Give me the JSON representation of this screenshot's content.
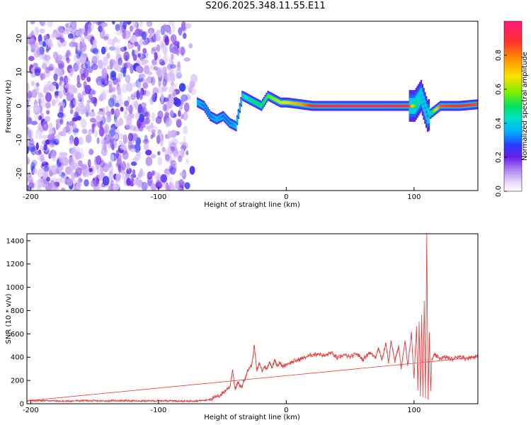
{
  "title": "S206.2025.348.11.55.E11",
  "chart_data": [
    {
      "type": "heatmap",
      "xlabel": "Height of straight line (km)",
      "ylabel": "Frequency (Hz)",
      "xlim": [
        -203,
        150
      ],
      "ylim": [
        -25,
        25
      ],
      "xticks": [
        -200,
        -100,
        0,
        100
      ],
      "yticks": [
        -20,
        -10,
        0,
        10,
        20
      ],
      "colorbar": {
        "label": "Normalized spectral amplitude",
        "range": [
          0,
          1
        ],
        "ticks": [
          0.0,
          0.2,
          0.4,
          0.6,
          0.8
        ],
        "tick_labels": [
          "0.0",
          "0.2",
          "0.4",
          "0.6",
          "0.8"
        ]
      },
      "noise_region": {
        "x": [
          -203,
          -70
        ],
        "y": [
          -25,
          25
        ],
        "amplitude": [
          0.02,
          0.15
        ]
      },
      "ridge": {
        "x": [
          -70,
          -65,
          -60,
          -55,
          -50,
          -45,
          -40,
          -35,
          -30,
          -25,
          -20,
          -15,
          -10,
          -5,
          0,
          10,
          20,
          40,
          60,
          80,
          95,
          100,
          105,
          110,
          120,
          135,
          150
        ],
        "y": [
          1,
          0,
          -3,
          -4,
          -3,
          -5,
          -6,
          3,
          2,
          1,
          0,
          3,
          2,
          1,
          1,
          0.5,
          0,
          0,
          0,
          0,
          0,
          0,
          3,
          -3,
          0,
          0,
          0.5
        ],
        "amplitude": [
          0.35,
          0.3,
          0.3,
          0.35,
          0.3,
          0.3,
          0.35,
          0.4,
          0.45,
          0.5,
          0.5,
          0.55,
          0.6,
          0.65,
          0.7,
          0.75,
          0.9,
          0.95,
          0.95,
          0.95,
          0.9,
          0.55,
          0.35,
          0.3,
          0.85,
          0.9,
          0.85
        ]
      }
    },
    {
      "type": "line",
      "xlabel": "Height of straight line (km)",
      "ylabel": "SNR (10 * v/v)",
      "xlim": [
        -203,
        150
      ],
      "ylim": [
        0,
        1460
      ],
      "xticks": [
        -200,
        -100,
        0,
        100
      ],
      "yticks": [
        0,
        200,
        400,
        600,
        800,
        1000,
        1200,
        1400
      ],
      "series": [
        {
          "color": "#e83a3a",
          "x": [
            -203,
            -190,
            -175,
            -160,
            -145,
            -130,
            -115,
            -100,
            -90,
            -80,
            -70,
            -63,
            -58,
            -52,
            -48,
            -44,
            -42,
            -40,
            -38,
            -35,
            -33,
            -31,
            -29,
            -27,
            -25,
            -23,
            -21,
            -19,
            -17,
            -15,
            -13,
            -11,
            -9,
            -7,
            -5,
            -3,
            0,
            5,
            10,
            15,
            20,
            25,
            30,
            35,
            40,
            45,
            50,
            55,
            60,
            65,
            70,
            72,
            75,
            78,
            80,
            82,
            85,
            88,
            90,
            93,
            95,
            98,
            100,
            102,
            103,
            104,
            105,
            106,
            107,
            108,
            109,
            110,
            111,
            112,
            113,
            114,
            116,
            120,
            125,
            130,
            135,
            140,
            145,
            150
          ],
          "y": [
            25,
            28,
            22,
            26,
            24,
            27,
            23,
            25,
            26,
            22,
            25,
            30,
            45,
            70,
            110,
            150,
            290,
            120,
            180,
            140,
            200,
            260,
            310,
            330,
            500,
            280,
            350,
            280,
            320,
            300,
            360,
            310,
            380,
            330,
            350,
            320,
            340,
            360,
            380,
            400,
            420,
            430,
            410,
            440,
            390,
            420,
            400,
            430,
            380,
            440,
            400,
            480,
            380,
            520,
            350,
            540,
            360,
            500,
            300,
            540,
            330,
            600,
            220,
            660,
            120,
            700,
            70,
            760,
            60,
            880,
            50,
            1460,
            40,
            600,
            110,
            380,
            420,
            390,
            400,
            380,
            410,
            390,
            400,
            410
          ]
        }
      ]
    }
  ]
}
